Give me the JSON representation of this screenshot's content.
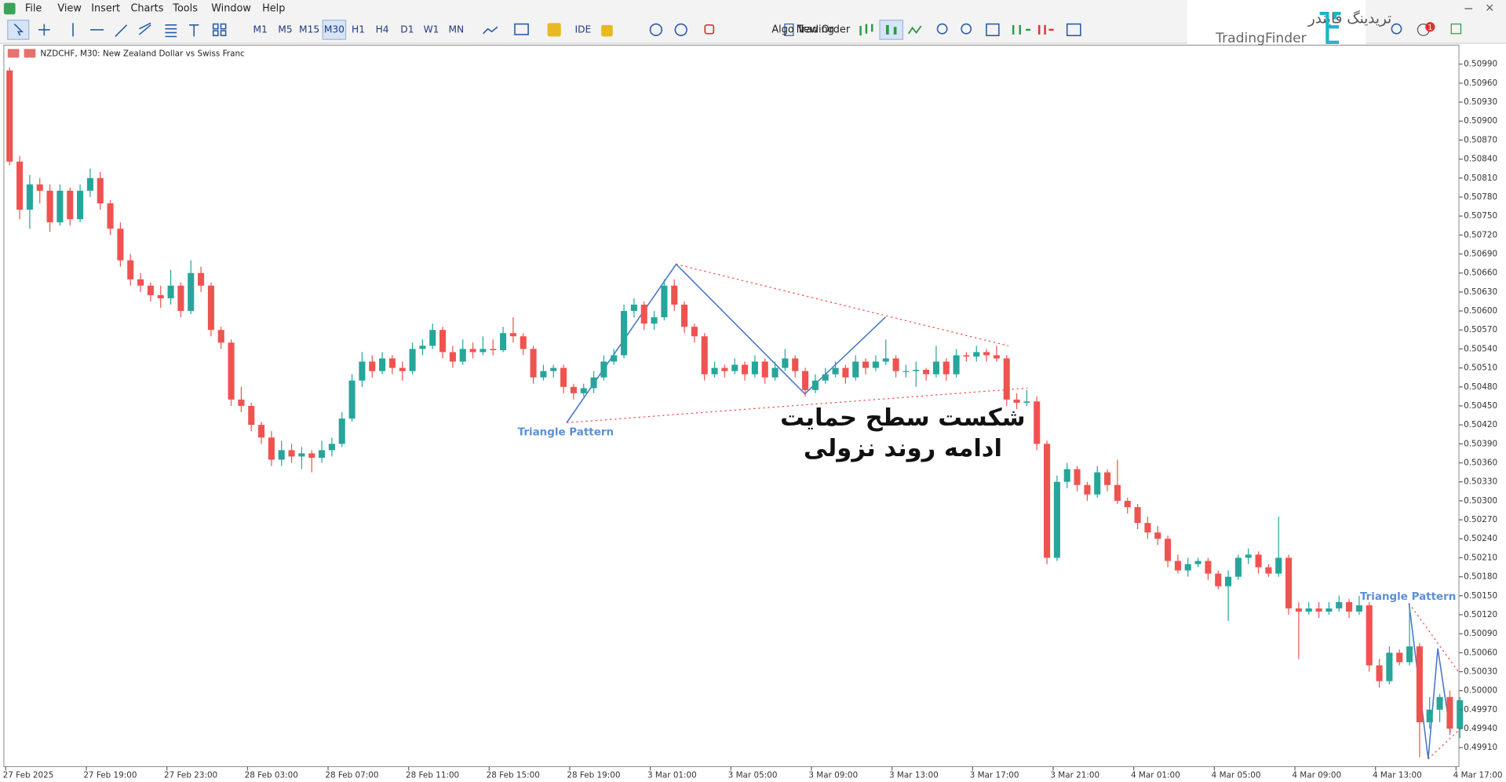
{
  "menu": [
    "File",
    "View",
    "Insert",
    "Charts",
    "Tools",
    "Window",
    "Help"
  ],
  "timeframes": [
    "M1",
    "M5",
    "M15",
    "M30",
    "H1",
    "H4",
    "D1",
    "W1",
    "MN"
  ],
  "toolbar": {
    "ide": "IDE",
    "algo": "Algo Trading",
    "order": "New Order",
    "badge": "1"
  },
  "logo": {
    "fa": "تریدینگ فایندر",
    "en": "TradingFinder"
  },
  "chart_data": {
    "type": "candlestick",
    "title": "NZDCHF, M30:  New Zealand Dollar vs Swiss Franc",
    "up_color": "#26a69a",
    "down_color": "#ef5350",
    "x": [
      "27 Feb 2025",
      null,
      null,
      null,
      null,
      null,
      null,
      null,
      "27 Feb 19:00",
      null,
      null,
      null,
      null,
      null,
      null,
      null,
      "27 Feb 23:00",
      null,
      null,
      null,
      null,
      null,
      null,
      null,
      "28 Feb 03:00",
      null,
      null,
      null,
      null,
      null,
      null,
      null,
      "28 Feb 07:00",
      null,
      null,
      null,
      null,
      null,
      null,
      null,
      "28 Feb 11:00",
      null,
      null,
      null,
      null,
      null,
      null,
      null,
      "28 Feb 15:00",
      null,
      null,
      null,
      null,
      null,
      null,
      null,
      "28 Feb 19:00",
      null,
      null,
      null,
      null,
      null,
      null,
      null,
      "3 Mar 01:00",
      null,
      null,
      null,
      null,
      null,
      null,
      null,
      "3 Mar 05:00",
      null,
      null,
      null,
      null,
      null,
      null,
      null,
      "3 Mar 09:00",
      null,
      null,
      null,
      null,
      null,
      null,
      null,
      "3 Mar 13:00",
      null,
      null,
      null,
      null,
      null,
      null,
      null,
      "3 Mar 17:00",
      null,
      null,
      null,
      null,
      null,
      null,
      null,
      "3 Mar 21:00",
      null,
      null,
      null,
      null,
      null,
      null,
      null,
      "4 Mar 01:00",
      null,
      null,
      null,
      null,
      null,
      null,
      null,
      "4 Mar 05:00",
      null,
      null,
      null,
      null,
      null,
      null,
      null,
      "4 Mar 09:00",
      null,
      null,
      null,
      null,
      null,
      null,
      null,
      "4 Mar 13:00",
      null,
      null,
      null,
      null,
      null,
      null,
      null,
      "4 Mar 17:00"
    ],
    "ohlc": [
      [
        0.5098,
        0.50985,
        0.5083,
        0.50836
      ],
      [
        0.50836,
        0.50845,
        0.50745,
        0.5076
      ],
      [
        0.5076,
        0.50815,
        0.5073,
        0.508
      ],
      [
        0.508,
        0.5081,
        0.5077,
        0.5079
      ],
      [
        0.5079,
        0.508,
        0.50725,
        0.5074
      ],
      [
        0.5074,
        0.508,
        0.50735,
        0.5079
      ],
      [
        0.5079,
        0.50795,
        0.50735,
        0.50745
      ],
      [
        0.50745,
        0.508,
        0.5074,
        0.5079
      ],
      [
        0.5079,
        0.50825,
        0.5078,
        0.5081
      ],
      [
        0.5081,
        0.5082,
        0.5076,
        0.5077
      ],
      [
        0.5077,
        0.50775,
        0.5072,
        0.5073
      ],
      [
        0.5073,
        0.5074,
        0.5067,
        0.5068
      ],
      [
        0.5068,
        0.5069,
        0.5064,
        0.5065
      ],
      [
        0.5065,
        0.5066,
        0.5063,
        0.5064
      ],
      [
        0.5064,
        0.50645,
        0.50615,
        0.50625
      ],
      [
        0.50625,
        0.5064,
        0.50605,
        0.5062
      ],
      [
        0.5062,
        0.50665,
        0.5061,
        0.5064
      ],
      [
        0.5064,
        0.50645,
        0.5059,
        0.506
      ],
      [
        0.506,
        0.5068,
        0.50595,
        0.5066
      ],
      [
        0.5066,
        0.5067,
        0.5063,
        0.5064
      ],
      [
        0.5064,
        0.50645,
        0.5056,
        0.5057
      ],
      [
        0.5057,
        0.50575,
        0.5054,
        0.5055
      ],
      [
        0.5055,
        0.50555,
        0.5045,
        0.5046
      ],
      [
        0.5046,
        0.5048,
        0.5044,
        0.5045
      ],
      [
        0.5045,
        0.50455,
        0.5041,
        0.5042
      ],
      [
        0.5042,
        0.50425,
        0.5039,
        0.504
      ],
      [
        0.504,
        0.5041,
        0.50355,
        0.50365
      ],
      [
        0.50365,
        0.50395,
        0.50355,
        0.5038
      ],
      [
        0.5038,
        0.5039,
        0.5036,
        0.5037
      ],
      [
        0.5037,
        0.50385,
        0.5035,
        0.50375
      ],
      [
        0.50375,
        0.5038,
        0.50345,
        0.50368
      ],
      [
        0.50368,
        0.50395,
        0.5036,
        0.5038
      ],
      [
        0.5038,
        0.504,
        0.5037,
        0.5039
      ],
      [
        0.5039,
        0.5044,
        0.50385,
        0.5043
      ],
      [
        0.5043,
        0.505,
        0.50425,
        0.5049
      ],
      [
        0.5049,
        0.50535,
        0.5048,
        0.5052
      ],
      [
        0.5052,
        0.5053,
        0.50495,
        0.50505
      ],
      [
        0.50505,
        0.50535,
        0.505,
        0.50525
      ],
      [
        0.50525,
        0.5053,
        0.505,
        0.5051
      ],
      [
        0.5051,
        0.5052,
        0.5049,
        0.50505
      ],
      [
        0.50505,
        0.5055,
        0.505,
        0.5054
      ],
      [
        0.5054,
        0.50555,
        0.5053,
        0.50545
      ],
      [
        0.50545,
        0.5058,
        0.5054,
        0.5057
      ],
      [
        0.5057,
        0.50575,
        0.50525,
        0.50535
      ],
      [
        0.50535,
        0.50545,
        0.5051,
        0.5052
      ],
      [
        0.5052,
        0.50555,
        0.50515,
        0.5054
      ],
      [
        0.5054,
        0.5055,
        0.50525,
        0.50535
      ],
      [
        0.50535,
        0.5056,
        0.5053,
        0.5054
      ],
      [
        0.5054,
        0.50555,
        0.5053,
        0.50538
      ],
      [
        0.50538,
        0.50575,
        0.50535,
        0.50565
      ],
      [
        0.50565,
        0.5059,
        0.5055,
        0.5056
      ],
      [
        0.5056,
        0.50565,
        0.5053,
        0.5054
      ],
      [
        0.5054,
        0.50545,
        0.50485,
        0.50495
      ],
      [
        0.50495,
        0.50515,
        0.5049,
        0.50505
      ],
      [
        0.50505,
        0.50515,
        0.50495,
        0.5051
      ],
      [
        0.5051,
        0.50515,
        0.5047,
        0.5048
      ],
      [
        0.5048,
        0.50485,
        0.5046,
        0.5047
      ],
      [
        0.5047,
        0.50485,
        0.50465,
        0.50478
      ],
      [
        0.50478,
        0.50505,
        0.5047,
        0.50495
      ],
      [
        0.50495,
        0.5053,
        0.5049,
        0.5052
      ],
      [
        0.5052,
        0.5054,
        0.50515,
        0.5053
      ],
      [
        0.5053,
        0.5061,
        0.50525,
        0.506
      ],
      [
        0.506,
        0.5062,
        0.5059,
        0.5061
      ],
      [
        0.5061,
        0.50615,
        0.5057,
        0.5058
      ],
      [
        0.5058,
        0.506,
        0.5057,
        0.5059
      ],
      [
        0.5059,
        0.5065,
        0.50585,
        0.5064
      ],
      [
        0.5064,
        0.5065,
        0.506,
        0.5061
      ],
      [
        0.5061,
        0.50615,
        0.50565,
        0.50575
      ],
      [
        0.50575,
        0.5058,
        0.5055,
        0.5056
      ],
      [
        0.5056,
        0.50565,
        0.5049,
        0.505
      ],
      [
        0.505,
        0.5052,
        0.50495,
        0.5051
      ],
      [
        0.5051,
        0.50515,
        0.50495,
        0.50505
      ],
      [
        0.50505,
        0.50525,
        0.505,
        0.50515
      ],
      [
        0.50515,
        0.5052,
        0.5049,
        0.505
      ],
      [
        0.505,
        0.5053,
        0.50495,
        0.5052
      ],
      [
        0.5052,
        0.50525,
        0.50485,
        0.50495
      ],
      [
        0.50495,
        0.5052,
        0.5049,
        0.5051
      ],
      [
        0.5051,
        0.5054,
        0.50505,
        0.50525
      ],
      [
        0.50525,
        0.5053,
        0.50495,
        0.50505
      ],
      [
        0.50505,
        0.5051,
        0.50465,
        0.50475
      ],
      [
        0.50475,
        0.505,
        0.5047,
        0.5049
      ],
      [
        0.5049,
        0.5051,
        0.50485,
        0.505
      ],
      [
        0.505,
        0.5052,
        0.50495,
        0.5051
      ],
      [
        0.5051,
        0.50515,
        0.50485,
        0.50495
      ],
      [
        0.50495,
        0.5053,
        0.5049,
        0.5052
      ],
      [
        0.5052,
        0.50525,
        0.505,
        0.5051
      ],
      [
        0.5051,
        0.5053,
        0.50505,
        0.5052
      ],
      [
        0.5052,
        0.50555,
        0.50515,
        0.50525
      ],
      [
        0.50525,
        0.5053,
        0.50495,
        0.50505
      ],
      [
        0.50505,
        0.50515,
        0.50495,
        0.50505
      ],
      [
        0.50505,
        0.5052,
        0.5048,
        0.50507
      ],
      [
        0.50507,
        0.5051,
        0.5049,
        0.505
      ],
      [
        0.505,
        0.50545,
        0.50495,
        0.5052
      ],
      [
        0.5052,
        0.50525,
        0.5049,
        0.505
      ],
      [
        0.505,
        0.5054,
        0.50495,
        0.5053
      ],
      [
        0.5053,
        0.50535,
        0.5052,
        0.50528
      ],
      [
        0.50528,
        0.50545,
        0.5052,
        0.50535
      ],
      [
        0.50535,
        0.5054,
        0.5052,
        0.5053
      ],
      [
        0.5053,
        0.50545,
        0.5052,
        0.50525
      ],
      [
        0.50525,
        0.5053,
        0.5045,
        0.5046
      ],
      [
        0.5046,
        0.5047,
        0.50445,
        0.50455
      ],
      [
        0.50455,
        0.50475,
        0.5045,
        0.50457
      ],
      [
        0.50457,
        0.50465,
        0.5038,
        0.5039
      ],
      [
        0.5039,
        0.50395,
        0.502,
        0.5021
      ],
      [
        0.5021,
        0.5034,
        0.50205,
        0.5033
      ],
      [
        0.5033,
        0.5036,
        0.5032,
        0.5035
      ],
      [
        0.5035,
        0.50355,
        0.50315,
        0.50325
      ],
      [
        0.50325,
        0.5033,
        0.503,
        0.5031
      ],
      [
        0.5031,
        0.50355,
        0.50305,
        0.50345
      ],
      [
        0.50345,
        0.5035,
        0.50315,
        0.50325
      ],
      [
        0.50325,
        0.50365,
        0.50295,
        0.503
      ],
      [
        0.503,
        0.50305,
        0.5028,
        0.5029
      ],
      [
        0.5029,
        0.50295,
        0.50255,
        0.50265
      ],
      [
        0.50265,
        0.50275,
        0.5024,
        0.5025
      ],
      [
        0.5025,
        0.5026,
        0.5023,
        0.5024
      ],
      [
        0.5024,
        0.50245,
        0.50195,
        0.50205
      ],
      [
        0.50205,
        0.50215,
        0.50185,
        0.5019
      ],
      [
        0.5019,
        0.5021,
        0.5018,
        0.502
      ],
      [
        0.502,
        0.5021,
        0.50195,
        0.50205
      ],
      [
        0.50205,
        0.5021,
        0.50175,
        0.50185
      ],
      [
        0.50185,
        0.5019,
        0.5016,
        0.50165
      ],
      [
        0.50165,
        0.5019,
        0.5011,
        0.5018
      ],
      [
        0.5018,
        0.50215,
        0.50175,
        0.5021
      ],
      [
        0.5021,
        0.50225,
        0.502,
        0.50215
      ],
      [
        0.50215,
        0.5022,
        0.50185,
        0.50195
      ],
      [
        0.50195,
        0.502,
        0.5018,
        0.50185
      ],
      [
        0.50185,
        0.50275,
        0.5018,
        0.5021
      ],
      [
        0.5021,
        0.50215,
        0.5012,
        0.5013
      ],
      [
        0.5013,
        0.5014,
        0.5005,
        0.50125
      ],
      [
        0.50125,
        0.5014,
        0.5012,
        0.5013
      ],
      [
        0.5013,
        0.5014,
        0.50115,
        0.50125
      ],
      [
        0.50125,
        0.5014,
        0.5012,
        0.5013
      ],
      [
        0.5013,
        0.5015,
        0.50125,
        0.5014
      ],
      [
        0.5014,
        0.50145,
        0.50115,
        0.50125
      ],
      [
        0.50125,
        0.5015,
        0.5012,
        0.50135
      ],
      [
        0.50135,
        0.5014,
        0.5003,
        0.5004
      ],
      [
        0.5004,
        0.5005,
        0.50005,
        0.50015
      ],
      [
        0.50015,
        0.5007,
        0.5001,
        0.5006
      ],
      [
        0.5006,
        0.50065,
        0.5004,
        0.50045
      ],
      [
        0.50045,
        0.5013,
        0.5004,
        0.5007
      ],
      [
        0.5007,
        0.50075,
        0.49895,
        0.4995
      ],
      [
        0.4995,
        0.4999,
        0.4994,
        0.4997
      ],
      [
        0.4997,
        0.49995,
        0.4995,
        0.4999
      ],
      [
        0.4999,
        0.5,
        0.4993,
        0.4994
      ],
      [
        0.4994,
        0.4999,
        0.49925,
        0.49985
      ]
    ],
    "ylim": [
      0.4988,
      0.5102
    ],
    "yticks": [
      {
        "value": 0.5099,
        "label": "0.50990"
      },
      {
        "value": 0.5096,
        "label": "0.50960"
      },
      {
        "value": 0.5093,
        "label": "0.50930"
      },
      {
        "value": 0.509,
        "label": "0.50900"
      },
      {
        "value": 0.5087,
        "label": "0.50870"
      },
      {
        "value": 0.5084,
        "label": "0.50840"
      },
      {
        "value": 0.5081,
        "label": "0.50810"
      },
      {
        "value": 0.5078,
        "label": "0.50780"
      },
      {
        "value": 0.5075,
        "label": "0.50750"
      },
      {
        "value": 0.5072,
        "label": "0.50720"
      },
      {
        "value": 0.5069,
        "label": "0.50690"
      },
      {
        "value": 0.5066,
        "label": "0.50660"
      },
      {
        "value": 0.5063,
        "label": "0.50630"
      },
      {
        "value": 0.506,
        "label": "0.50600"
      },
      {
        "value": 0.5057,
        "label": "0.50570"
      },
      {
        "value": 0.5054,
        "label": "0.50540"
      },
      {
        "value": 0.5051,
        "label": "0.50510"
      },
      {
        "value": 0.5048,
        "label": "0.50480"
      },
      {
        "value": 0.5045,
        "label": "0.50450"
      },
      {
        "value": 0.5042,
        "label": "0.50420"
      },
      {
        "value": 0.5039,
        "label": "0.50390"
      },
      {
        "value": 0.5036,
        "label": "0.50360"
      },
      {
        "value": 0.5033,
        "label": "0.50330"
      },
      {
        "value": 0.503,
        "label": "0.50300"
      },
      {
        "value": 0.5027,
        "label": "0.50270"
      },
      {
        "value": 0.5024,
        "label": "0.50240"
      },
      {
        "value": 0.5021,
        "label": "0.50210"
      },
      {
        "value": 0.5018,
        "label": "0.50180"
      },
      {
        "value": 0.5015,
        "label": "0.50150"
      },
      {
        "value": 0.5012,
        "label": "0.50120"
      },
      {
        "value": 0.5009,
        "label": "0.50090"
      },
      {
        "value": 0.5006,
        "label": "0.50060"
      },
      {
        "value": 0.5003,
        "label": "0.50030"
      },
      {
        "value": 0.5,
        "label": "0.50000"
      },
      {
        "value": 0.4997,
        "label": "0.49970"
      },
      {
        "value": 0.4994,
        "label": "0.49940"
      },
      {
        "value": 0.4991,
        "label": "0.49910"
      }
    ],
    "annotations": {
      "pattern_1": "Triangle Pattern",
      "pattern_2": "Triangle Pattern",
      "note": [
        "شکست سطح حمایت",
        "ادامه روند نزولی"
      ]
    }
  }
}
